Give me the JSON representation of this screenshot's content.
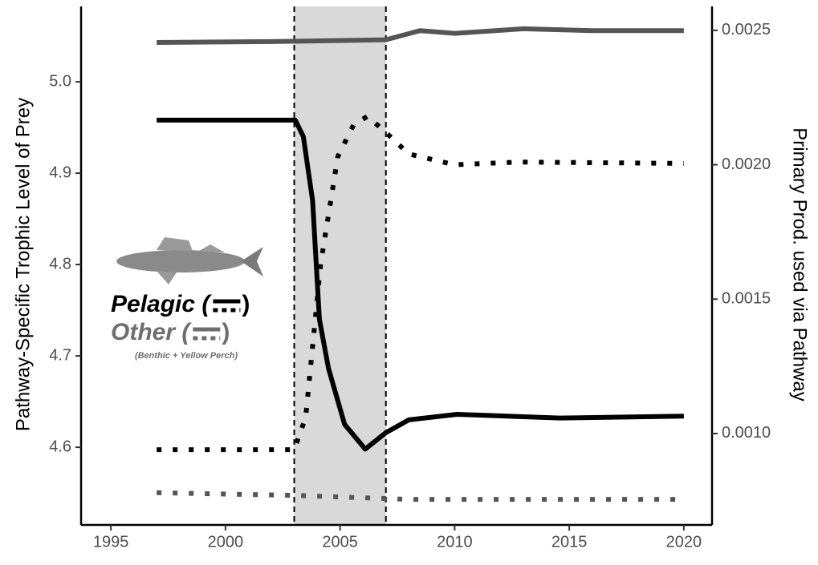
{
  "chart_data": {
    "type": "line",
    "y_label": "Pathway-Specific Trophic Level of Prey",
    "y2_label": "Primary Prod. used via Pathway",
    "xlim": [
      1993.7,
      2021.23
    ],
    "xticks": [
      1995,
      2000,
      2005,
      2010,
      2015,
      2020
    ],
    "ylim": [
      4.515,
      5.0825
    ],
    "yticks": [
      4.6,
      4.7,
      4.8,
      4.9,
      {
        "value": 5.0,
        "label": "5.0"
      }
    ],
    "y2lim": [
      0.00066,
      0.002589
    ],
    "y2ticks": [
      {
        "value": 0.001,
        "label": "0.0010"
      },
      {
        "value": 0.0015,
        "label": "0.0015"
      },
      {
        "value": 0.002,
        "label": "0.0020"
      },
      {
        "value": 0.0025,
        "label": "0.0025"
      }
    ],
    "highlight_range": [
      2003,
      2007
    ],
    "series": [
      {
        "name": "Pelagic",
        "color": "#000000",
        "style": "solid",
        "axis": "y",
        "x": [
          1997,
          2003.05,
          2003.4,
          2003.8,
          2004.1,
          2004.5,
          2005.2,
          2006.1,
          2007,
          2008,
          2010.1,
          2014.6,
          2020
        ],
        "values": [
          4.958,
          4.958,
          4.94,
          4.87,
          4.74,
          4.686,
          4.625,
          4.598,
          4.616,
          4.63,
          4.636,
          4.632,
          4.634
        ]
      },
      {
        "name": "Other",
        "color": "#555555",
        "style": "solid",
        "axis": "y",
        "x": [
          1997,
          2002,
          2007,
          2008.5,
          2010,
          2013,
          2016,
          2020
        ],
        "values": [
          5.043,
          5.044,
          5.046,
          5.056,
          5.053,
          5.058,
          5.056,
          5.056
        ]
      },
      {
        "name": "Pelagic",
        "color": "#000000",
        "style": "dotted",
        "axis": "y2",
        "x": [
          1997,
          2003,
          2003.5,
          2004.15,
          2004.9,
          2005.6,
          2006.2,
          2007,
          2008,
          2010,
          2012.8,
          2020
        ],
        "values": [
          0.00094,
          0.00094,
          0.00106,
          0.00163,
          0.00203,
          0.00215,
          0.00218,
          0.00212,
          0.00204,
          0.002,
          0.00201,
          0.002005
        ]
      },
      {
        "name": "Other",
        "color": "#555555",
        "style": "dotted",
        "axis": "y2",
        "x": [
          1997,
          2003,
          2008,
          2020
        ],
        "values": [
          0.00078,
          0.00077,
          0.000755,
          0.000755
        ]
      }
    ],
    "legend": [
      {
        "label": "Pelagic (",
        "close": ")",
        "color": "#000000"
      },
      {
        "label": "Other (",
        "close": ")",
        "color": "#6e6e6e",
        "note": "(Benthic + Yellow Perch)"
      }
    ]
  }
}
